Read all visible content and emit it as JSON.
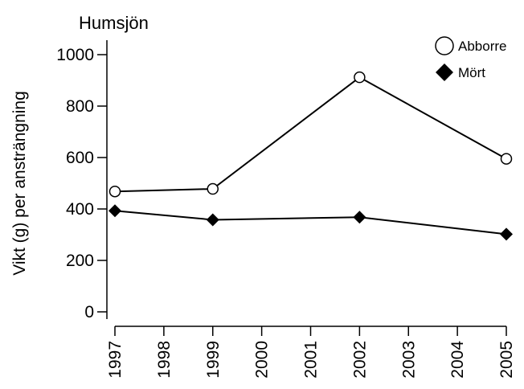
{
  "chart_data": {
    "type": "line",
    "title": "Humsjön",
    "ylabel": "Vikt (g) per ansträngning",
    "xlabel": "",
    "x_ticks": [
      "1997",
      "1998",
      "1999",
      "2000",
      "2001",
      "2002",
      "2003",
      "2004",
      "2005"
    ],
    "y_ticks": [
      "0",
      "200",
      "400",
      "600",
      "800",
      "1000"
    ],
    "xlim": [
      1997,
      2005
    ],
    "ylim": [
      0,
      1000
    ],
    "grid": false,
    "legend_position": "top-right",
    "series": [
      {
        "name": "Abborre",
        "marker": "open-circle",
        "x": [
          1997,
          1999,
          2002,
          2005
        ],
        "y": [
          468,
          478,
          912,
          595
        ]
      },
      {
        "name": "Mört",
        "marker": "filled-diamond",
        "x": [
          1997,
          1999,
          2002,
          2005
        ],
        "y": [
          393,
          358,
          368,
          302
        ]
      }
    ]
  }
}
